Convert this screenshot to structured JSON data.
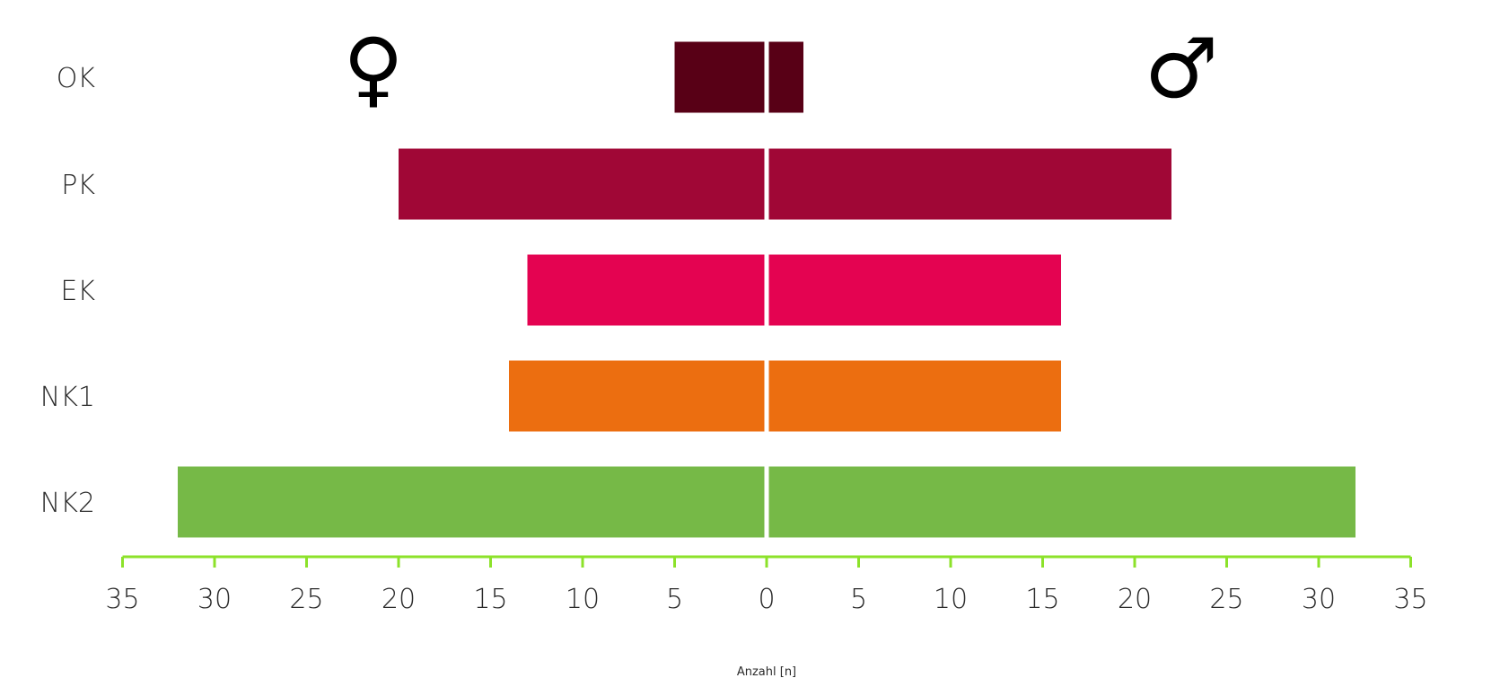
{
  "chart_data": {
    "type": "bar",
    "orientation": "horizontal-diverging",
    "categories": [
      "OK",
      "PK",
      "EK",
      "NK1",
      "NK2"
    ],
    "series": [
      {
        "name": "♀",
        "side": "left",
        "values": [
          5,
          20,
          13,
          14,
          32
        ]
      },
      {
        "name": "♂",
        "side": "right",
        "values": [
          2,
          22,
          16,
          16,
          32
        ]
      }
    ],
    "colors": [
      "#580016",
      "#a00736",
      "#e40351",
      "#ec6e10",
      "#76b947"
    ],
    "axis_color": "#8ce22a",
    "xlabel": "Anzahl [n]",
    "xlim": [
      -35,
      35
    ],
    "tick_values": [
      -35,
      -30,
      -25,
      -20,
      -15,
      -10,
      -5,
      0,
      5,
      10,
      15,
      20,
      25,
      30,
      35
    ],
    "tick_labels": [
      "35",
      "30",
      "25",
      "20",
      "15",
      "10",
      "5",
      "0",
      "5",
      "10",
      "15",
      "20",
      "25",
      "30",
      "35"
    ],
    "female_symbol": "♀",
    "male_symbol": "♂",
    "grid": false,
    "legend": "none"
  }
}
